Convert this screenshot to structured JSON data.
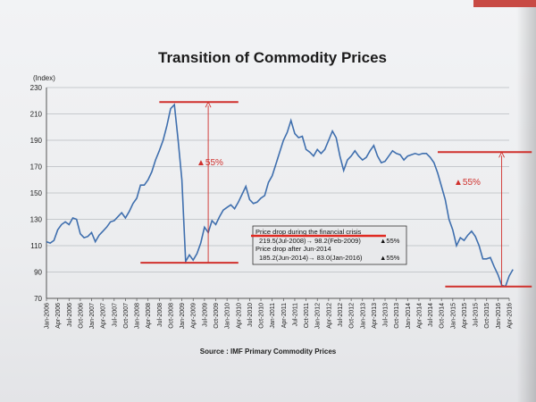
{
  "chart_data": {
    "type": "line",
    "title": "Transition of Commodity Prices",
    "ylabel": "(Index)",
    "source": "Source : IMF Primary Commodity Prices",
    "ylim": [
      70,
      230
    ],
    "yticks": [
      70,
      90,
      110,
      130,
      150,
      170,
      190,
      210,
      230
    ],
    "grid": "horizontal",
    "x_tick_labels": [
      "Jan-2006",
      "Apr-2006",
      "Jul-2006",
      "Oct-2006",
      "Jan-2007",
      "Apr-2007",
      "Jul-2007",
      "Oct-2007",
      "Jan-2008",
      "Apr-2008",
      "Jul-2008",
      "Oct-2008",
      "Jan-2009",
      "Apr-2009",
      "Jul-2009",
      "Oct-2009",
      "Jan-2010",
      "Apr-2010",
      "Jul-2010",
      "Oct-2010",
      "Jan-2011",
      "Apr-2011",
      "Jul-2011",
      "Oct-2011",
      "Jan-2012",
      "Apr-2012",
      "Jul-2012",
      "Oct-2012",
      "Jan-2013",
      "Apr-2013",
      "Jul-2013",
      "Oct-2013",
      "Jan-2014",
      "Apr-2014",
      "Jul-2014",
      "Oct-2014",
      "Jan-2015",
      "Apr-2015",
      "Jul-2015",
      "Oct-2015",
      "Jan-2016",
      "Apr-2016"
    ],
    "series": [
      {
        "color": "#3f6fae",
        "values": [
          113,
          112,
          114,
          122,
          126,
          128,
          126,
          131,
          130,
          119,
          116,
          117,
          120,
          113,
          118,
          121,
          124,
          128,
          129,
          132,
          135,
          131,
          136,
          142,
          146,
          156,
          156,
          160,
          166,
          175,
          182,
          190,
          201,
          214,
          217,
          190,
          160,
          98,
          103,
          99,
          104,
          112,
          124,
          120,
          129,
          126,
          132,
          137,
          139,
          141,
          138,
          143,
          149,
          155,
          145,
          142,
          143,
          146,
          148,
          158,
          163,
          172,
          181,
          190,
          196,
          205,
          195,
          192,
          193,
          183,
          181,
          178,
          183,
          180,
          183,
          190,
          197,
          192,
          178,
          167,
          175,
          178,
          182,
          178,
          175,
          177,
          182,
          186,
          178,
          173,
          174,
          178,
          182,
          180,
          179,
          175,
          178,
          179,
          180,
          179,
          180,
          180,
          177,
          173,
          165,
          155,
          145,
          130,
          122,
          110,
          116,
          114,
          118,
          121,
          117,
          110,
          100,
          100,
          101,
          94,
          88,
          80,
          79,
          87,
          92
        ]
      }
    ],
    "annotations": [
      {
        "text": "▲55%"
      },
      {
        "text": "▲55%"
      }
    ],
    "note_box": {
      "line1": "Price drop during the financial crisis",
      "line2": "219.5(Jul-2008)→ 98.2(Feb-2009)",
      "line2_tag": "▲55%",
      "line3": "Price drop after Jun-2014",
      "line4": "185.2(Jun-2014)→ 83.0(Jan-2016)",
      "line4_tag": "▲55%"
    },
    "colors": {
      "line": "#3f6fae",
      "marker": "#d0312d",
      "grid": "#b9bcc1",
      "axis": "#555555"
    }
  }
}
